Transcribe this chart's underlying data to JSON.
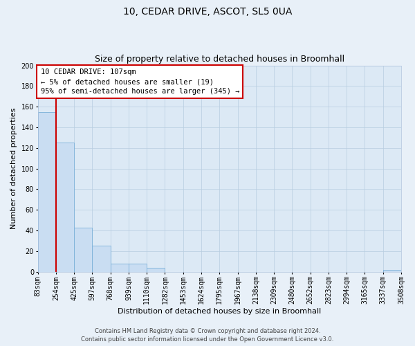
{
  "title": "10, CEDAR DRIVE, ASCOT, SL5 0UA",
  "subtitle": "Size of property relative to detached houses in Broomhall",
  "xlabel": "Distribution of detached houses by size in Broomhall",
  "ylabel": "Number of detached properties",
  "bar_vals": [
    155,
    125,
    43,
    25,
    8,
    8,
    4,
    0,
    0,
    0,
    0,
    0,
    0,
    0,
    0,
    0,
    0,
    0,
    0,
    2
  ],
  "bar_labels": [
    "83sqm",
    "254sqm",
    "425sqm",
    "597sqm",
    "768sqm",
    "939sqm",
    "1110sqm",
    "1282sqm",
    "1453sqm",
    "1624sqm",
    "1795sqm",
    "1967sqm",
    "2138sqm",
    "2309sqm",
    "2480sqm",
    "2652sqm",
    "2823sqm",
    "2994sqm",
    "3165sqm",
    "3337sqm",
    "3508sqm"
  ],
  "ylim": [
    0,
    200
  ],
  "yticks": [
    0,
    20,
    40,
    60,
    80,
    100,
    120,
    140,
    160,
    180,
    200
  ],
  "bar_color": "#c9ddf2",
  "bar_edge_color": "#7ab0d8",
  "background_color": "#dce9f5",
  "fig_background_color": "#e8f0f8",
  "property_value_label": "10 CEDAR DRIVE: 107sqm",
  "annotation_line1": "← 5% of detached houses are smaller (19)",
  "annotation_line2": "95% of semi-detached houses are larger (345) →",
  "annotation_box_facecolor": "#ffffff",
  "annotation_box_edge_color": "#cc0000",
  "red_line_color": "#cc0000",
  "footer_line1": "Contains HM Land Registry data © Crown copyright and database right 2024.",
  "footer_line2": "Contains public sector information licensed under the Open Government Licence v3.0.",
  "title_fontsize": 10,
  "subtitle_fontsize": 9,
  "axis_label_fontsize": 8,
  "tick_fontsize": 7,
  "annotation_fontsize": 7.5,
  "footer_fontsize": 6
}
